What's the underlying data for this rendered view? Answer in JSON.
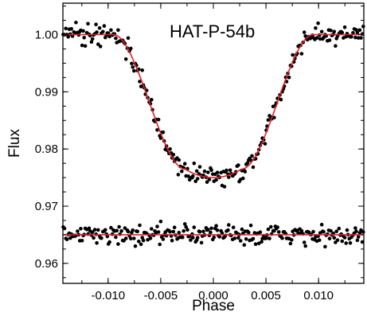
{
  "chart_data": {
    "type": "scatter",
    "title": "HAT-P-54b",
    "xlabel": "Phase",
    "ylabel": "Flux",
    "xlim": [
      -0.0143,
      0.0143
    ],
    "ylim": [
      0.9565,
      1.0055
    ],
    "xticks": [
      -0.01,
      -0.005,
      0.0,
      0.005,
      0.01
    ],
    "xtick_labels": [
      "-0.010",
      "-0.005",
      "0.000",
      "0.005",
      "0.010"
    ],
    "yticks": [
      0.96,
      0.97,
      0.98,
      0.99,
      1.0
    ],
    "ytick_labels": [
      "0.96",
      "0.97",
      "0.98",
      "0.99",
      "1.00"
    ],
    "grid": false,
    "model": {
      "transit_depth": 0.025,
      "t1": 0.0095,
      "t2": 0.0027,
      "baseline": 1.0,
      "residual_offset": 0.965
    },
    "series": [
      {
        "kind": "line",
        "color": "#e0202a",
        "x": [
          -0.0143,
          -0.012,
          -0.01,
          -0.0095,
          -0.009,
          -0.0085,
          -0.008,
          -0.0075,
          -0.007,
          -0.0065,
          -0.006,
          -0.0055,
          -0.005,
          -0.0045,
          -0.004,
          -0.0035,
          -0.003,
          -0.0025,
          -0.002,
          -0.0015,
          -0.001,
          -0.0005,
          0.0,
          0.0005,
          0.001,
          0.0015,
          0.002,
          0.0025,
          0.003,
          0.0035,
          0.004,
          0.0045,
          0.005,
          0.0055,
          0.006,
          0.0065,
          0.007,
          0.0075,
          0.008,
          0.0085,
          0.009,
          0.0095,
          0.01,
          0.012,
          0.0143
        ],
        "y": [
          1.0,
          1.0,
          1.0,
          1.0,
          0.9996,
          0.9985,
          0.9967,
          0.9945,
          0.9918,
          0.9889,
          0.9859,
          0.9829,
          0.9801,
          0.9786,
          0.9776,
          0.9768,
          0.9762,
          0.9758,
          0.9755,
          0.9753,
          0.9751,
          0.975,
          0.975,
          0.975,
          0.9751,
          0.9753,
          0.9755,
          0.9758,
          0.9762,
          0.9768,
          0.9776,
          0.9786,
          0.9801,
          0.9829,
          0.9859,
          0.9889,
          0.9918,
          0.9945,
          0.9967,
          0.9985,
          0.9996,
          1.0,
          1.0,
          1.0,
          1.0
        ]
      },
      {
        "kind": "line",
        "color": "#e0202a",
        "x": [
          -0.0143,
          0.0143
        ],
        "y": [
          0.965,
          0.965
        ]
      },
      {
        "kind": "scatter",
        "color": "#000000",
        "points_per_set": 260,
        "scatter_sigma": 0.0008
      }
    ]
  }
}
